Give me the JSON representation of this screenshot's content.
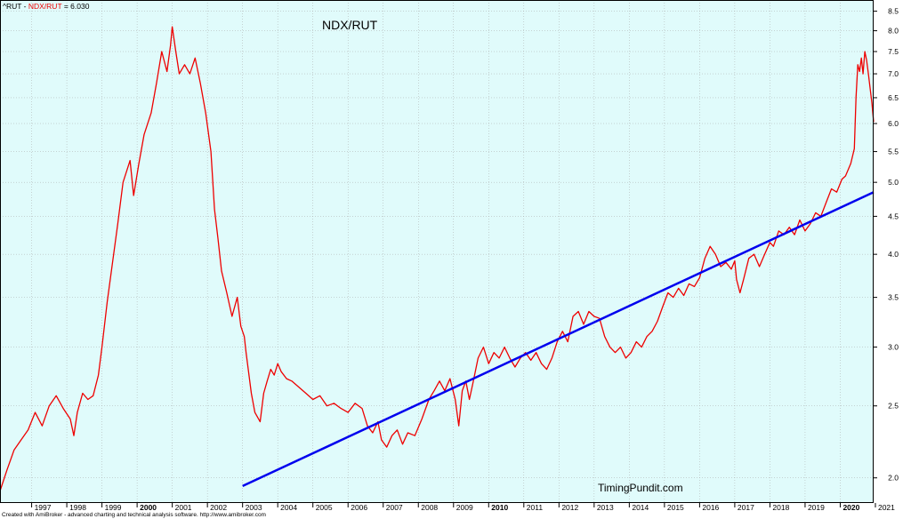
{
  "legend": {
    "prefix": "^RUT - ",
    "series_label": "NDX/RUT",
    "suffix": " = 6.030"
  },
  "watermark": "TimingPundit.com",
  "credit": "Created with AmiBroker - advanced charting and technical analysis software. http://www.amibroker.com",
  "colors": {
    "background": "#e0fbfb",
    "series": "#ee0000",
    "trendline": "#0000ee",
    "grid": "#a8a8a8"
  },
  "chart_data": {
    "type": "line",
    "title": "NDX/RUT",
    "y_scale": "log",
    "ylim": [
      1.85,
      8.8
    ],
    "xlim": [
      1996.1,
      2020.95
    ],
    "y_ticks": [
      2.0,
      2.5,
      3.0,
      3.5,
      4.0,
      4.5,
      5.0,
      5.5,
      6.0,
      6.5,
      7.0,
      7.5,
      8.0,
      8.5
    ],
    "x_ticks": [
      {
        "label": "1997",
        "x": 1997.0
      },
      {
        "label": "1998",
        "x": 1998.0
      },
      {
        "label": "1999",
        "x": 1999.0
      },
      {
        "label": "2000",
        "x": 2000.0,
        "bold": true
      },
      {
        "label": "2001",
        "x": 2001.0
      },
      {
        "label": "2002",
        "x": 2002.0
      },
      {
        "label": "2003",
        "x": 2003.0
      },
      {
        "label": "2004",
        "x": 2004.0
      },
      {
        "label": "2005",
        "x": 2005.0
      },
      {
        "label": "2006",
        "x": 2006.0
      },
      {
        "label": "2007",
        "x": 2007.0
      },
      {
        "label": "2008",
        "x": 2008.0
      },
      {
        "label": "2009",
        "x": 2009.0
      },
      {
        "label": "2010",
        "x": 2010.0,
        "bold": true
      },
      {
        "label": "2011",
        "x": 2011.0
      },
      {
        "label": "2012",
        "x": 2012.0
      },
      {
        "label": "2013",
        "x": 2013.0
      },
      {
        "label": "2014",
        "x": 2014.0
      },
      {
        "label": "2015",
        "x": 2015.0
      },
      {
        "label": "2016",
        "x": 2016.0
      },
      {
        "label": "2017",
        "x": 2017.0
      },
      {
        "label": "2018",
        "x": 2018.0
      },
      {
        "label": "2019",
        "x": 2019.0
      },
      {
        "label": "2020",
        "x": 2020.0,
        "bold": true
      },
      {
        "label": "2021",
        "x": 2021.0
      }
    ],
    "grid": true,
    "series": [
      {
        "name": "NDX/RUT",
        "points": [
          [
            1996.1,
            1.92
          ],
          [
            1996.3,
            2.05
          ],
          [
            1996.5,
            2.18
          ],
          [
            1996.7,
            2.25
          ],
          [
            1996.9,
            2.32
          ],
          [
            1997.1,
            2.45
          ],
          [
            1997.3,
            2.35
          ],
          [
            1997.5,
            2.5
          ],
          [
            1997.7,
            2.58
          ],
          [
            1997.9,
            2.48
          ],
          [
            1998.1,
            2.4
          ],
          [
            1998.2,
            2.28
          ],
          [
            1998.3,
            2.45
          ],
          [
            1998.45,
            2.6
          ],
          [
            1998.6,
            2.55
          ],
          [
            1998.75,
            2.58
          ],
          [
            1998.9,
            2.75
          ],
          [
            1999.0,
            3.0
          ],
          [
            1999.15,
            3.45
          ],
          [
            1999.3,
            3.9
          ],
          [
            1999.45,
            4.4
          ],
          [
            1999.6,
            5.0
          ],
          [
            1999.8,
            5.35
          ],
          [
            1999.9,
            4.8
          ],
          [
            2000.05,
            5.3
          ],
          [
            2000.2,
            5.8
          ],
          [
            2000.4,
            6.2
          ],
          [
            2000.55,
            6.8
          ],
          [
            2000.7,
            7.5
          ],
          [
            2000.85,
            7.05
          ],
          [
            2000.95,
            7.65
          ],
          [
            2001.0,
            8.1
          ],
          [
            2001.1,
            7.5
          ],
          [
            2001.2,
            7.0
          ],
          [
            2001.35,
            7.2
          ],
          [
            2001.5,
            7.0
          ],
          [
            2001.65,
            7.35
          ],
          [
            2001.8,
            6.8
          ],
          [
            2001.95,
            6.2
          ],
          [
            2002.1,
            5.5
          ],
          [
            2002.2,
            4.6
          ],
          [
            2002.3,
            4.2
          ],
          [
            2002.4,
            3.8
          ],
          [
            2002.55,
            3.55
          ],
          [
            2002.7,
            3.3
          ],
          [
            2002.85,
            3.5
          ],
          [
            2002.95,
            3.2
          ],
          [
            2003.05,
            3.1
          ],
          [
            2003.1,
            2.95
          ],
          [
            2003.25,
            2.6
          ],
          [
            2003.35,
            2.45
          ],
          [
            2003.5,
            2.38
          ],
          [
            2003.6,
            2.6
          ],
          [
            2003.7,
            2.7
          ],
          [
            2003.8,
            2.8
          ],
          [
            2003.9,
            2.75
          ],
          [
            2004.0,
            2.85
          ],
          [
            2004.1,
            2.78
          ],
          [
            2004.25,
            2.72
          ],
          [
            2004.4,
            2.7
          ],
          [
            2004.6,
            2.65
          ],
          [
            2004.8,
            2.6
          ],
          [
            2005.0,
            2.55
          ],
          [
            2005.2,
            2.58
          ],
          [
            2005.4,
            2.5
          ],
          [
            2005.6,
            2.52
          ],
          [
            2005.8,
            2.48
          ],
          [
            2006.0,
            2.45
          ],
          [
            2006.2,
            2.52
          ],
          [
            2006.4,
            2.48
          ],
          [
            2006.55,
            2.35
          ],
          [
            2006.7,
            2.3
          ],
          [
            2006.85,
            2.38
          ],
          [
            2006.95,
            2.25
          ],
          [
            2007.1,
            2.2
          ],
          [
            2007.25,
            2.28
          ],
          [
            2007.4,
            2.32
          ],
          [
            2007.55,
            2.22
          ],
          [
            2007.7,
            2.3
          ],
          [
            2007.9,
            2.28
          ],
          [
            2008.1,
            2.4
          ],
          [
            2008.3,
            2.55
          ],
          [
            2008.45,
            2.62
          ],
          [
            2008.6,
            2.7
          ],
          [
            2008.75,
            2.62
          ],
          [
            2008.9,
            2.72
          ],
          [
            2009.05,
            2.55
          ],
          [
            2009.15,
            2.35
          ],
          [
            2009.25,
            2.62
          ],
          [
            2009.35,
            2.7
          ],
          [
            2009.45,
            2.55
          ],
          [
            2009.55,
            2.68
          ],
          [
            2009.7,
            2.9
          ],
          [
            2009.85,
            3.0
          ],
          [
            2010.0,
            2.85
          ],
          [
            2010.15,
            2.95
          ],
          [
            2010.3,
            2.9
          ],
          [
            2010.45,
            3.0
          ],
          [
            2010.6,
            2.9
          ],
          [
            2010.75,
            2.82
          ],
          [
            2010.9,
            2.9
          ],
          [
            2011.05,
            2.95
          ],
          [
            2011.2,
            2.88
          ],
          [
            2011.35,
            2.95
          ],
          [
            2011.5,
            2.85
          ],
          [
            2011.65,
            2.8
          ],
          [
            2011.8,
            2.9
          ],
          [
            2011.95,
            3.05
          ],
          [
            2012.1,
            3.15
          ],
          [
            2012.25,
            3.05
          ],
          [
            2012.4,
            3.3
          ],
          [
            2012.55,
            3.35
          ],
          [
            2012.7,
            3.22
          ],
          [
            2012.85,
            3.35
          ],
          [
            2013.0,
            3.3
          ],
          [
            2013.15,
            3.28
          ],
          [
            2013.3,
            3.1
          ],
          [
            2013.45,
            3.0
          ],
          [
            2013.6,
            2.95
          ],
          [
            2013.75,
            3.0
          ],
          [
            2013.9,
            2.9
          ],
          [
            2014.05,
            2.95
          ],
          [
            2014.2,
            3.05
          ],
          [
            2014.35,
            3.0
          ],
          [
            2014.5,
            3.1
          ],
          [
            2014.65,
            3.15
          ],
          [
            2014.8,
            3.25
          ],
          [
            2014.95,
            3.4
          ],
          [
            2015.1,
            3.55
          ],
          [
            2015.25,
            3.5
          ],
          [
            2015.4,
            3.6
          ],
          [
            2015.55,
            3.52
          ],
          [
            2015.7,
            3.65
          ],
          [
            2015.85,
            3.62
          ],
          [
            2016.0,
            3.72
          ],
          [
            2016.15,
            3.95
          ],
          [
            2016.3,
            4.1
          ],
          [
            2016.45,
            4.0
          ],
          [
            2016.6,
            3.85
          ],
          [
            2016.75,
            3.9
          ],
          [
            2016.9,
            3.82
          ],
          [
            2017.0,
            3.92
          ],
          [
            2017.05,
            3.7
          ],
          [
            2017.15,
            3.55
          ],
          [
            2017.25,
            3.7
          ],
          [
            2017.4,
            3.95
          ],
          [
            2017.55,
            4.0
          ],
          [
            2017.7,
            3.85
          ],
          [
            2017.85,
            4.0
          ],
          [
            2018.0,
            4.15
          ],
          [
            2018.1,
            4.1
          ],
          [
            2018.25,
            4.3
          ],
          [
            2018.4,
            4.25
          ],
          [
            2018.55,
            4.35
          ],
          [
            2018.7,
            4.25
          ],
          [
            2018.85,
            4.45
          ],
          [
            2019.0,
            4.3
          ],
          [
            2019.15,
            4.4
          ],
          [
            2019.3,
            4.55
          ],
          [
            2019.45,
            4.5
          ],
          [
            2019.6,
            4.7
          ],
          [
            2019.75,
            4.9
          ],
          [
            2019.9,
            4.85
          ],
          [
            2020.05,
            5.05
          ],
          [
            2020.15,
            5.1
          ],
          [
            2020.3,
            5.3
          ],
          [
            2020.4,
            5.55
          ],
          [
            2020.45,
            6.5
          ],
          [
            2020.5,
            7.2
          ],
          [
            2020.55,
            7.05
          ],
          [
            2020.6,
            7.35
          ],
          [
            2020.65,
            7.0
          ],
          [
            2020.7,
            7.5
          ],
          [
            2020.75,
            7.3
          ],
          [
            2020.8,
            7.0
          ],
          [
            2020.85,
            6.7
          ],
          [
            2020.9,
            6.4
          ],
          [
            2020.95,
            6.03
          ]
        ]
      },
      {
        "name": "trendline",
        "points": [
          [
            2003.0,
            1.95
          ],
          [
            2020.95,
            4.85
          ]
        ]
      }
    ]
  }
}
